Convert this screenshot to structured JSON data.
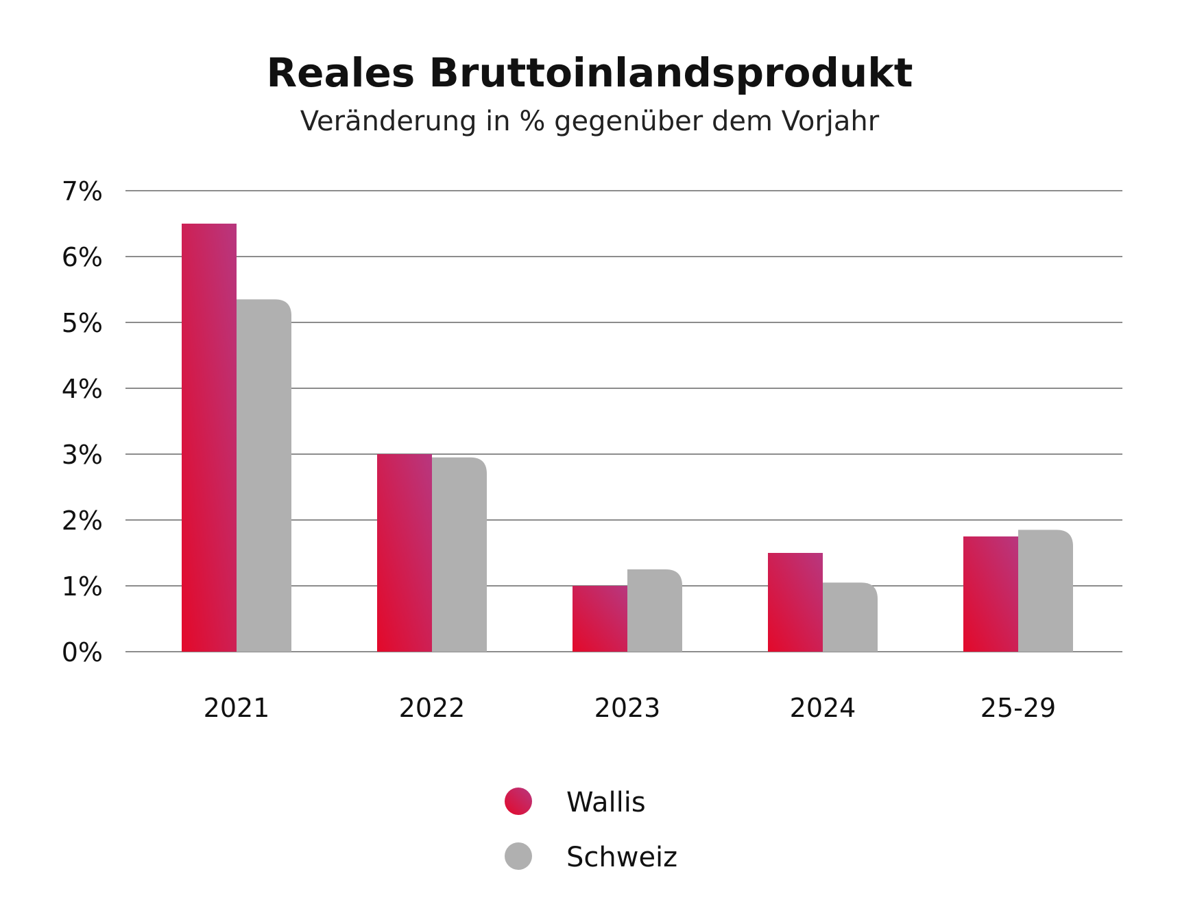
{
  "chart_data": {
    "type": "bar",
    "title": "Reales Bruttoinlandsprodukt",
    "subtitle": "Veränderung in % gegenüber dem Vorjahr",
    "categories": [
      "2021",
      "2022",
      "2023",
      "2024",
      "25-29"
    ],
    "series": [
      {
        "name": "Wallis",
        "values": [
          6.5,
          3.0,
          1.0,
          1.5,
          1.75
        ]
      },
      {
        "name": "Schweiz",
        "values": [
          5.35,
          2.95,
          1.25,
          1.05,
          1.85
        ]
      }
    ],
    "ylim": [
      0,
      7
    ],
    "yticks": [
      "0%",
      "1%",
      "2%",
      "3%",
      "4%",
      "5%",
      "6%",
      "7%"
    ],
    "grid": true,
    "legend": "bottom-center"
  },
  "colors": {
    "wallis_top": "#b8377f",
    "wallis_bottom": "#e3092a",
    "schweiz": "#b0b0b0"
  }
}
